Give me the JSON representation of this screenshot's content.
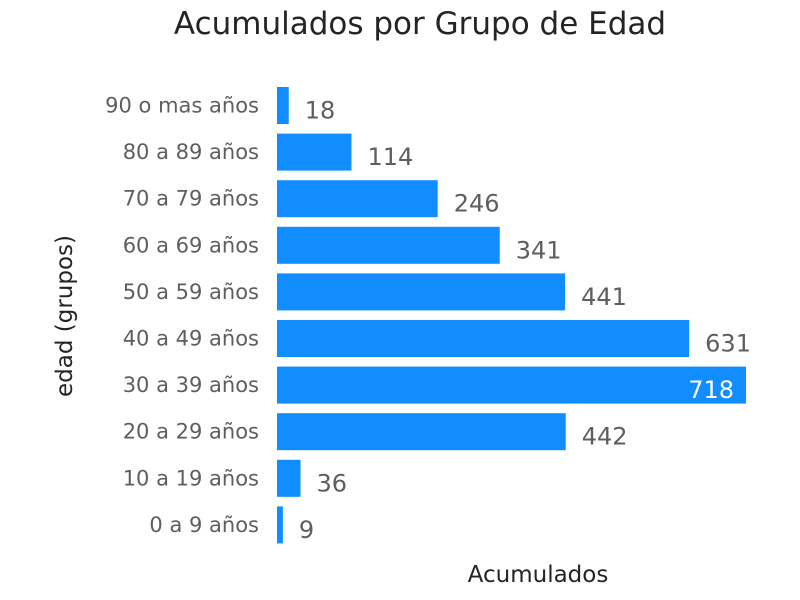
{
  "chart_data": {
    "type": "bar",
    "orientation": "horizontal",
    "title": "Acumulados por Grupo de Edad",
    "xlabel": "Acumulados",
    "ylabel": "edad (grupos)",
    "categories": [
      "90 o mas años",
      "80 a 89 años",
      "70 a 79 años",
      "60 a 69 años",
      "50 a 59 años",
      "40 a 49 años",
      "30 a 39 años",
      "20 a 29 años",
      "10 a 19 años",
      "0 a 9 años"
    ],
    "values": [
      18,
      114,
      246,
      341,
      441,
      631,
      718,
      442,
      36,
      9
    ],
    "xlim": [
      0,
      718
    ],
    "grid": false,
    "legend": "none",
    "colors": {
      "bar": "#118DFF",
      "label": "#605E5C",
      "label_inside": "#ffffff",
      "axis_text": "#605E5C",
      "title": "#252423"
    }
  }
}
